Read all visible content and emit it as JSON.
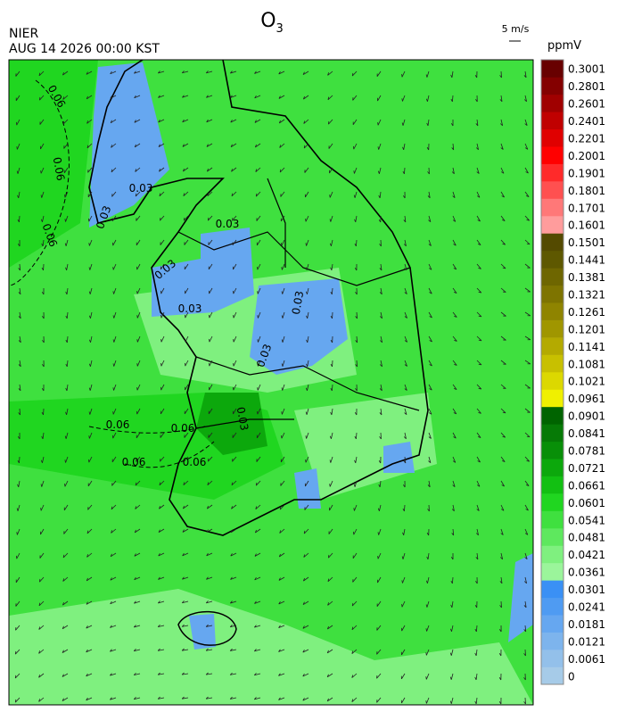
{
  "header": {
    "title": "O",
    "title_sub": "3",
    "agency": "NIER",
    "datetime": "AUG 14 2026 00:00 KST",
    "wind_scale": "5 m/s",
    "unit": "ppmV"
  },
  "colorbar": {
    "labels": [
      "0",
      "0.0061",
      "0.0121",
      "0.0181",
      "0.0241",
      "0.0301",
      "0.0361",
      "0.0421",
      "0.0481",
      "0.0541",
      "0.0601",
      "0.0661",
      "0.0721",
      "0.0781",
      "0.0841",
      "0.0901",
      "0.0961",
      "0.1021",
      "0.1081",
      "0.1141",
      "0.1201",
      "0.1261",
      "0.1321",
      "0.1381",
      "0.1441",
      "0.1501",
      "0.1601",
      "0.1701",
      "0.1801",
      "0.1901",
      "0.2001",
      "0.2201",
      "0.2401",
      "0.2601",
      "0.2801",
      "0.3001"
    ],
    "colors": [
      "#a6cbe8",
      "#93c0ea",
      "#7db4ed",
      "#66a7f0",
      "#4f9bf2",
      "#3a90f5",
      "#9bf59b",
      "#7ff07f",
      "#5ee85e",
      "#3fe03f",
      "#20d620",
      "#12c012",
      "#0ca80c",
      "#088f08",
      "#067a06",
      "#006400",
      "#f0f000",
      "#dcd800",
      "#c8c000",
      "#b4aa00",
      "#a09600",
      "#8f8400",
      "#7e7400",
      "#6e6600",
      "#5e5800",
      "#544a00",
      "#ff9c9c",
      "#ff7878",
      "#ff5050",
      "#ff2a2a",
      "#ff0000",
      "#e00000",
      "#c00000",
      "#a00000",
      "#840000",
      "#680000"
    ]
  },
  "contour_labels": [
    "0.06",
    "0.06",
    "0.06",
    "0.06",
    "0.06",
    "0.06",
    "0.06",
    "0.03",
    "0.03",
    "0.03",
    "0.03",
    "0.03",
    "0.03",
    "0.03",
    "0.03"
  ]
}
